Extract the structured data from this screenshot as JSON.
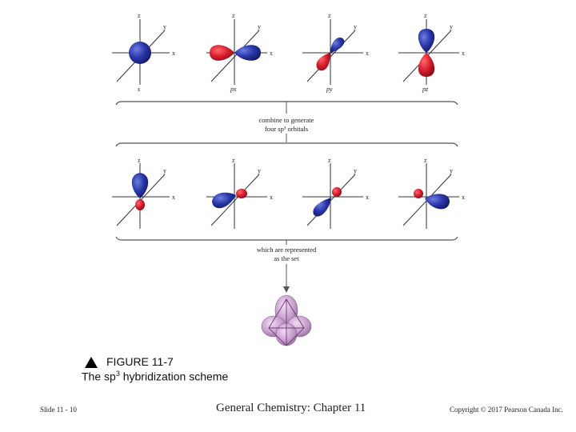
{
  "row1": [
    {
      "orbital": "s",
      "axes": {
        "x": "x",
        "y": "y",
        "z": "z"
      }
    },
    {
      "orbital": "px",
      "axes": {
        "x": "x",
        "y": "y",
        "z": "z"
      }
    },
    {
      "orbital": "py",
      "axes": {
        "x": "x",
        "y": "y",
        "z": "z"
      }
    },
    {
      "orbital": "pz",
      "axes": {
        "x": "x",
        "y": "y",
        "z": "z"
      }
    }
  ],
  "row2": [
    {
      "axes": {
        "x": "x",
        "y": "y",
        "z": "z"
      }
    },
    {
      "axes": {
        "x": "x",
        "y": "y",
        "z": "z"
      }
    },
    {
      "axes": {
        "x": "x",
        "y": "y",
        "z": "z"
      }
    },
    {
      "axes": {
        "x": "x",
        "y": "y",
        "z": "z"
      }
    }
  ],
  "annotations": {
    "combine_line1": "combine to generate",
    "combine_line2": "four sp³ orbitals",
    "represented_line1": "which are represented",
    "represented_line2": "as the set"
  },
  "caption": {
    "figure": "FIGURE 11-7",
    "text_prefix": "The sp",
    "text_sup": "3",
    "text_suffix": " hybridization scheme"
  },
  "footer": {
    "left": "Slide 11 - 10",
    "center": "General Chemistry: Chapter 11",
    "right": "Copyright © 2017 Pearson Canada Inc."
  },
  "colors": {
    "blue_lobe": "#2a36a8",
    "red_lobe": "#d81e2e",
    "purple_set": "#c9a0cf",
    "axis": "#333333"
  }
}
